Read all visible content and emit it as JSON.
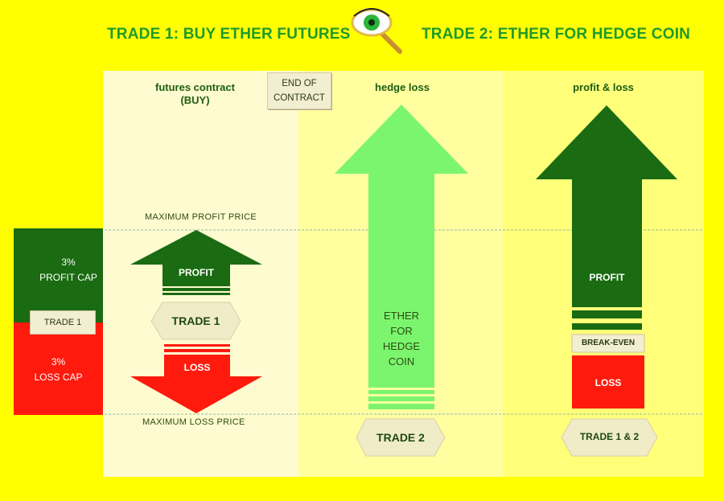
{
  "titles": {
    "trade1": "TRADE 1: BUY ETHER FUTURES",
    "trade2": "TRADE 2: ETHER FOR HEDGE COIN"
  },
  "icons": {
    "center": "eye-magnifier-icon"
  },
  "columns": {
    "futures_line1": "futures contract",
    "futures_line2": "(BUY)",
    "hedge": "hedge loss",
    "pnl": "profit & loss"
  },
  "end_of_contract": {
    "line1": "END OF",
    "line2": "CONTRACT"
  },
  "levels": {
    "max_profit": "MAXIMUM PROFIT PRICE",
    "max_loss": "MAXIMUM LOSS PRICE"
  },
  "left_bar": {
    "profit_line1": "3%",
    "profit_line2": "PROFIT CAP",
    "trade": "TRADE 1",
    "loss_line1": "3%",
    "loss_line2": "LOSS CAP"
  },
  "trade1_column": {
    "profit": "PROFIT",
    "trade": "TRADE 1",
    "loss": "LOSS"
  },
  "hedge_column": {
    "line1": "ETHER",
    "line2": "FOR",
    "line3": "HEDGE",
    "line4": "COIN",
    "trade": "TRADE 2"
  },
  "pnl_column": {
    "profit": "PROFIT",
    "break_even": "BREAK-EVEN",
    "loss": "LOSS",
    "trade": "TRADE 1 & 2"
  },
  "colors": {
    "background": "#ffff00",
    "title_green": "#1f9a2a",
    "dark_green": "#1a6b12",
    "light_green": "#7cf56e",
    "red": "#ff1a0d",
    "hex_fill": "#f0ecc8"
  }
}
